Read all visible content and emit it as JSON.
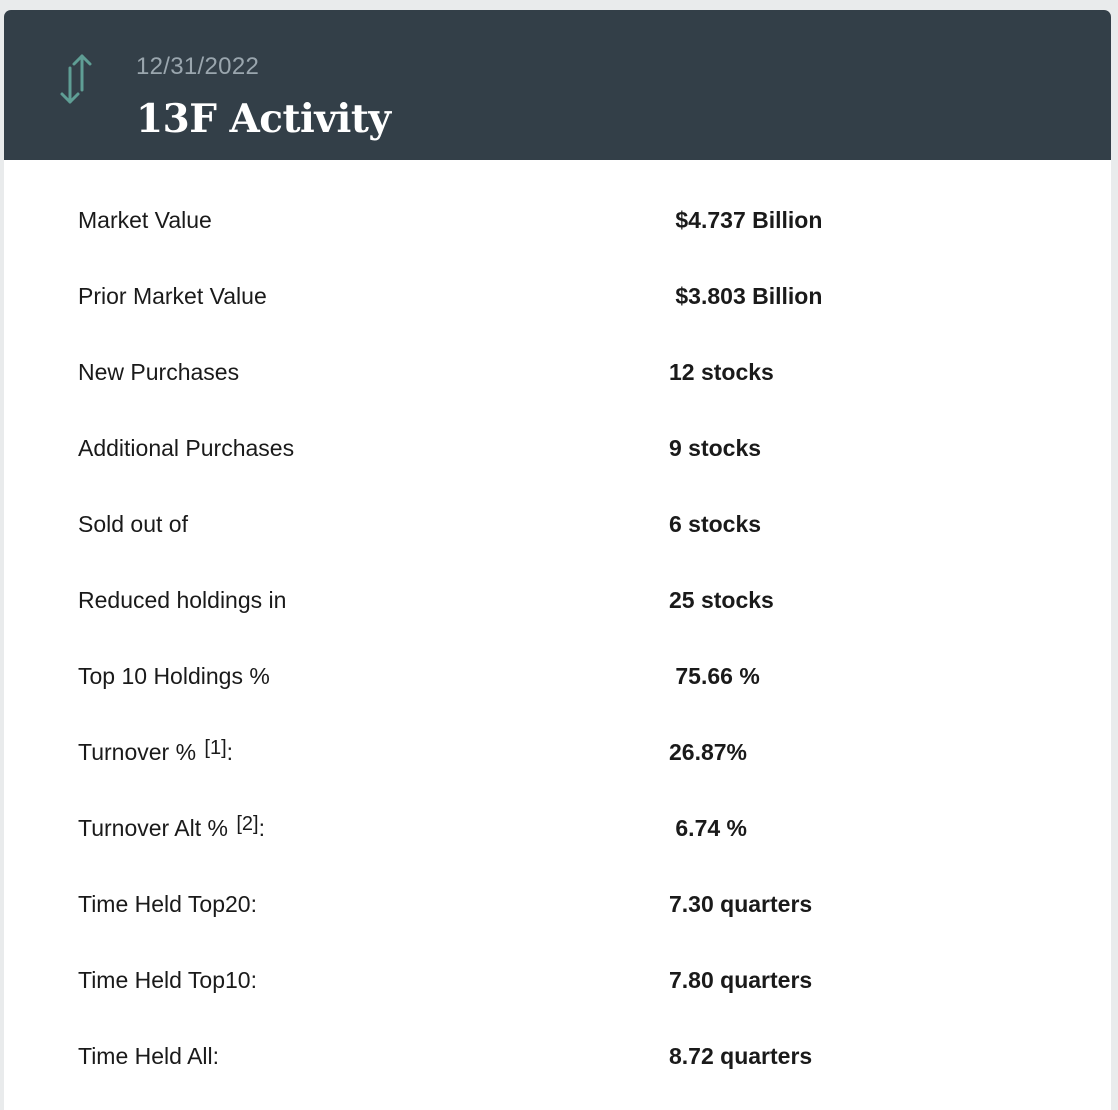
{
  "header": {
    "icon": "up-down-arrows-icon",
    "date": "12/31/2022",
    "title": "13F Activity",
    "background_color": "#333f48",
    "icon_color": "#5f9e95"
  },
  "rows": [
    {
      "label": "Market Value",
      "note": "",
      "suffix": "",
      "value": " $4.737 Billion"
    },
    {
      "label": "Prior Market Value",
      "note": "",
      "suffix": "",
      "value": " $3.803 Billion"
    },
    {
      "label": "New Purchases",
      "note": "",
      "suffix": "",
      "value": "12 stocks"
    },
    {
      "label": "Additional Purchases",
      "note": "",
      "suffix": "",
      "value": "9 stocks"
    },
    {
      "label": "Sold out of",
      "note": "",
      "suffix": "",
      "value": "6 stocks"
    },
    {
      "label": "Reduced holdings in",
      "note": "",
      "suffix": "",
      "value": "25 stocks"
    },
    {
      "label": "Top 10 Holdings %",
      "note": "",
      "suffix": "",
      "value": " 75.66 %"
    },
    {
      "label": "Turnover % ",
      "note": "[1]",
      "suffix": ":",
      "value": "26.87%"
    },
    {
      "label": "Turnover Alt % ",
      "note": "[2]",
      "suffix": ":",
      "value": " 6.74 %"
    },
    {
      "label": "Time Held Top20:",
      "note": "",
      "suffix": "",
      "value": "7.30 quarters"
    },
    {
      "label": "Time Held Top10:",
      "note": "",
      "suffix": "",
      "value": "7.80 quarters"
    },
    {
      "label": "Time Held All:",
      "note": "",
      "suffix": "",
      "value": "8.72 quarters"
    }
  ]
}
